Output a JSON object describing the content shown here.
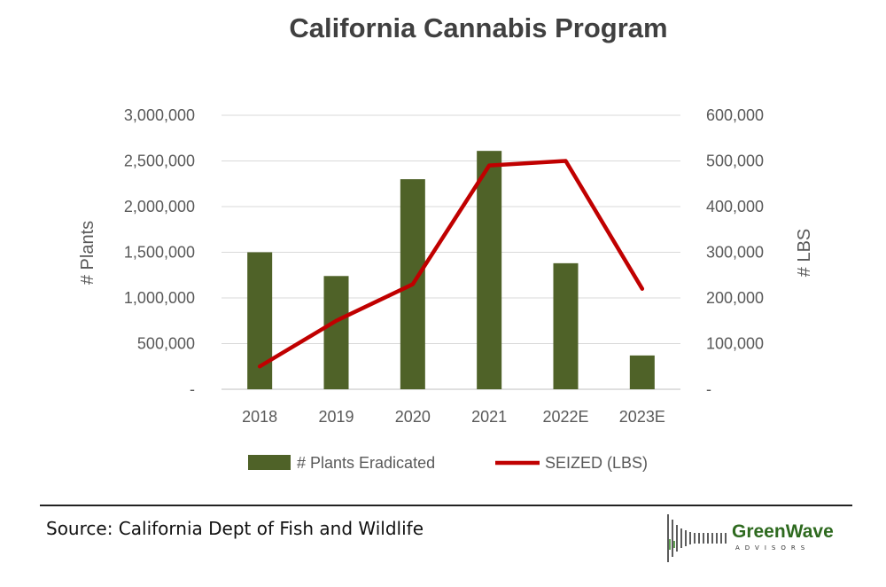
{
  "chart_data": {
    "type": "bar",
    "title": "California Cannabis Program",
    "categories": [
      "2018",
      "2019",
      "2020",
      "2021",
      "2022E",
      "2023E"
    ],
    "series": [
      {
        "name": "# Plants Eradicated",
        "type": "bar",
        "axis": "left",
        "color": "#4f6228",
        "values": [
          1500000,
          1240000,
          2300000,
          2610000,
          1380000,
          370000
        ]
      },
      {
        "name": "SEIZED (LBS)",
        "type": "line",
        "axis": "right",
        "color": "#c00000",
        "values": [
          50000,
          150000,
          230000,
          490000,
          500000,
          220000
        ]
      }
    ],
    "ylabel_left": "# Plants",
    "ylabel_right": "# LBS",
    "ylim_left": [
      0,
      3000000
    ],
    "ylim_right": [
      0,
      600000
    ],
    "yticks_left": [
      "-",
      "500,000",
      "1,000,000",
      "1,500,000",
      "2,000,000",
      "2,500,000",
      "3,000,000"
    ],
    "yticks_right": [
      "-",
      "100,000",
      "200,000",
      "300,000",
      "400,000",
      "500,000",
      "600,000"
    ],
    "grid": true,
    "legend_position": "bottom"
  },
  "footer": {
    "source": "Source: California Dept of Fish and Wildlife",
    "logo_name": "GreenWave",
    "logo_sub": "ADVISORS"
  }
}
